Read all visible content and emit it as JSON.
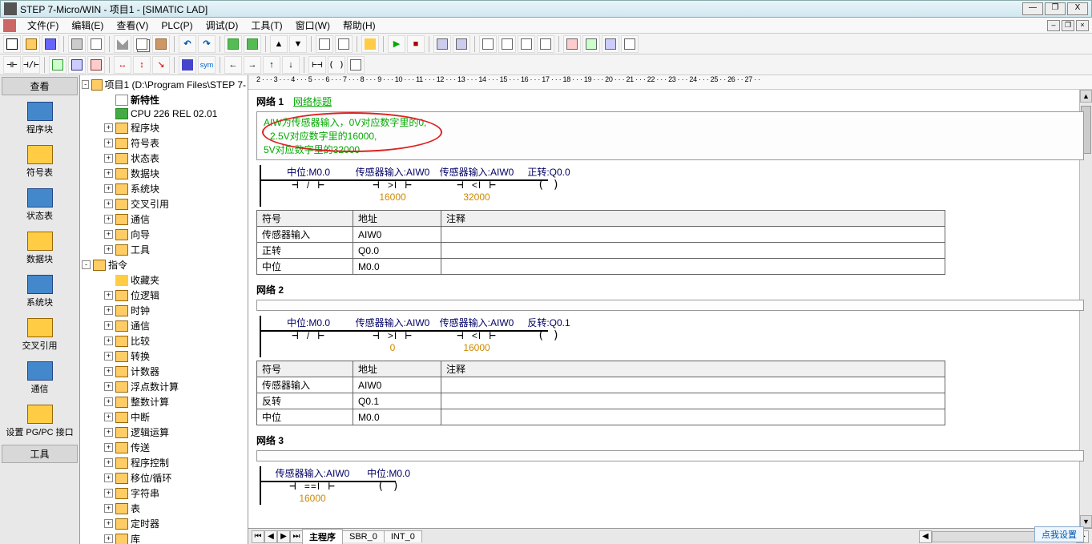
{
  "window": {
    "title": "STEP 7-Micro/WIN - 项目1 - [SIMATIC LAD]",
    "min": "—",
    "max": "❐",
    "close": "X"
  },
  "menu": {
    "items": [
      "文件(F)",
      "编辑(E)",
      "查看(V)",
      "PLC(P)",
      "调试(D)",
      "工具(T)",
      "窗口(W)",
      "帮助(H)"
    ]
  },
  "sidebar": {
    "header": "查看",
    "tools": [
      {
        "label": "程序块"
      },
      {
        "label": "符号表"
      },
      {
        "label": "状态表"
      },
      {
        "label": "数据块"
      },
      {
        "label": "系统块"
      },
      {
        "label": "交叉引用"
      },
      {
        "label": "通信"
      },
      {
        "label": "设置 PG/PC 接口"
      }
    ],
    "footer": "工具"
  },
  "tree": {
    "root": "项目1 (D:\\Program Files\\STEP 7-",
    "items": [
      {
        "icon": "doc",
        "label": "新特性",
        "bold": true,
        "indent": 1
      },
      {
        "icon": "chip",
        "label": "CPU 226 REL 02.01",
        "indent": 1
      },
      {
        "exp": "+",
        "icon": "folder",
        "label": "程序块",
        "indent": 1
      },
      {
        "exp": "+",
        "icon": "folder",
        "label": "符号表",
        "indent": 1
      },
      {
        "exp": "+",
        "icon": "folder",
        "label": "状态表",
        "indent": 1
      },
      {
        "exp": "+",
        "icon": "folder",
        "label": "数据块",
        "indent": 1
      },
      {
        "exp": "+",
        "icon": "folder",
        "label": "系统块",
        "indent": 1
      },
      {
        "exp": "+",
        "icon": "folder",
        "label": "交叉引用",
        "indent": 1
      },
      {
        "exp": "+",
        "icon": "folder",
        "label": "通信",
        "indent": 1
      },
      {
        "exp": "+",
        "icon": "folder",
        "label": "向导",
        "indent": 1
      },
      {
        "exp": "+",
        "icon": "folder",
        "label": "工具",
        "indent": 1
      },
      {
        "exp": "-",
        "icon": "folder",
        "label": "指令",
        "indent": 0,
        "root2": true
      },
      {
        "icon": "star",
        "label": "收藏夹",
        "indent": 1
      },
      {
        "exp": "+",
        "icon": "folder",
        "label": "位逻辑",
        "indent": 1
      },
      {
        "exp": "+",
        "icon": "folder",
        "label": "时钟",
        "indent": 1
      },
      {
        "exp": "+",
        "icon": "folder",
        "label": "通信",
        "indent": 1
      },
      {
        "exp": "+",
        "icon": "folder",
        "label": "比较",
        "indent": 1
      },
      {
        "exp": "+",
        "icon": "folder",
        "label": "转换",
        "indent": 1
      },
      {
        "exp": "+",
        "icon": "folder",
        "label": "计数器",
        "indent": 1
      },
      {
        "exp": "+",
        "icon": "folder",
        "label": "浮点数计算",
        "indent": 1
      },
      {
        "exp": "+",
        "icon": "folder",
        "label": "整数计算",
        "indent": 1
      },
      {
        "exp": "+",
        "icon": "folder",
        "label": "中断",
        "indent": 1
      },
      {
        "exp": "+",
        "icon": "folder",
        "label": "逻辑运算",
        "indent": 1
      },
      {
        "exp": "+",
        "icon": "folder",
        "label": "传送",
        "indent": 1
      },
      {
        "exp": "+",
        "icon": "folder",
        "label": "程序控制",
        "indent": 1
      },
      {
        "exp": "+",
        "icon": "folder",
        "label": "移位/循环",
        "indent": 1
      },
      {
        "exp": "+",
        "icon": "folder",
        "label": "字符串",
        "indent": 1
      },
      {
        "exp": "+",
        "icon": "folder",
        "label": "表",
        "indent": 1
      },
      {
        "exp": "+",
        "icon": "folder",
        "label": "定时器",
        "indent": 1
      },
      {
        "exp": "+",
        "icon": "folder",
        "label": "库",
        "indent": 1
      },
      {
        "exp": "+",
        "icon": "folder",
        "label": "调用子程序",
        "indent": 1
      }
    ]
  },
  "ruler": "2 · · · 3 · · · 4 · · · 5 · · · 6 · · · 7 · · · 8 · · · 9 · · · 10 · · · 11 · · · 12 · · · 13 · · · 14 · · · 15 · · · 16 · · · 17 · · · 18 · · · 19 · · · 20 · · · 21 · · · 22 · · · 23 · · · 24 · · · 25 ·     · 26 · · 27 · ·",
  "net1": {
    "title": "网络 1",
    "subtitle": "网络标题",
    "comment1": "AIW为传感器输入，0V对应数字里的0,",
    "comment2": "2.5V对应数字里的16000,",
    "comment3": "5V对应数字里的32000",
    "e1": {
      "top": "中位:M0.0",
      "sym": "/",
      "bot": ""
    },
    "e2": {
      "top": "传感器输入:AIW0",
      "sym": ">I",
      "bot": "16000"
    },
    "e3": {
      "top": "传感器输入:AIW0",
      "sym": "<I",
      "bot": "32000"
    },
    "e4": {
      "top": "正转:Q0.0",
      "sym": " ",
      "bot": ""
    },
    "table": {
      "h1": "符号",
      "h2": "地址",
      "h3": "注释",
      "rows": [
        [
          "传感器输入",
          "AIW0",
          ""
        ],
        [
          "正转",
          "Q0.0",
          ""
        ],
        [
          "中位",
          "M0.0",
          ""
        ]
      ]
    }
  },
  "net2": {
    "title": "网络 2",
    "e1": {
      "top": "中位:M0.0",
      "sym": "/",
      "bot": ""
    },
    "e2": {
      "top": "传感器输入:AIW0",
      "sym": ">I",
      "bot": "0"
    },
    "e3": {
      "top": "传感器输入:AIW0",
      "sym": "<I",
      "bot": "16000"
    },
    "e4": {
      "top": "反转:Q0.1",
      "sym": " ",
      "bot": ""
    },
    "table": {
      "h1": "符号",
      "h2": "地址",
      "h3": "注释",
      "rows": [
        [
          "传感器输入",
          "AIW0",
          ""
        ],
        [
          "反转",
          "Q0.1",
          ""
        ],
        [
          "中位",
          "M0.0",
          ""
        ]
      ]
    }
  },
  "net3": {
    "title": "网络 3",
    "e1": {
      "top": "传感器输入:AIW0",
      "sym": "==I",
      "bot": "16000"
    },
    "e2": {
      "top": "中位:M0.0",
      "sym": " ",
      "bot": ""
    }
  },
  "tabs": {
    "t1": "主程序",
    "t2": "SBR_0",
    "t3": "INT_0"
  },
  "status": "点我设置"
}
